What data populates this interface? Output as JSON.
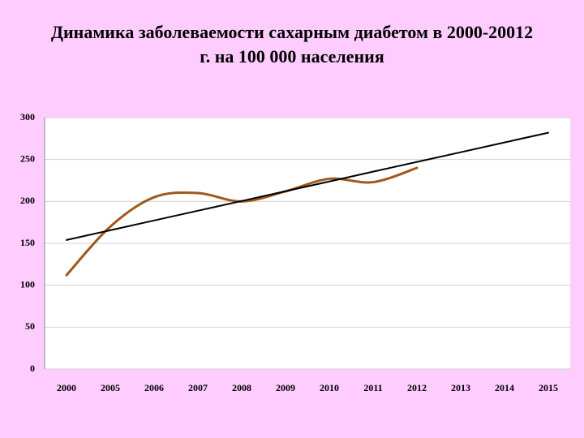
{
  "chart_data": {
    "type": "line",
    "title": [
      "Динамика заболеваемости сахарным диабетом в 2000-20012",
      "г. на 100 000 населения"
    ],
    "categories": [
      "2000",
      "2005",
      "2006",
      "2007",
      "2008",
      "2009",
      "2010",
      "2011",
      "2012",
      "2013",
      "2014",
      "2015"
    ],
    "series": [
      {
        "color": "#a0581c",
        "smooth": true,
        "values": [
          112,
          170,
          205,
          210,
          200,
          212,
          227,
          223,
          240,
          null,
          null,
          null
        ]
      },
      {
        "color": "#000000",
        "smooth": false,
        "values": [
          154,
          165.6,
          177.3,
          188.9,
          200.5,
          212.2,
          223.8,
          235.5,
          247.1,
          258.7,
          270.4,
          282
        ]
      }
    ],
    "ylim": [
      0,
      300
    ],
    "yticks": [
      0,
      50,
      100,
      150,
      200,
      250,
      300
    ],
    "grid": true
  }
}
